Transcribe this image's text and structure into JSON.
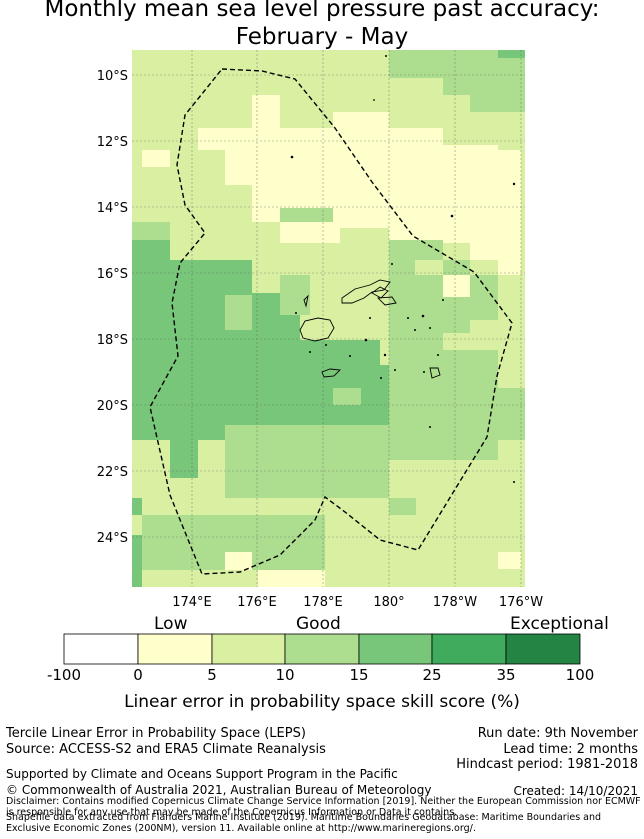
{
  "title": {
    "line1": "Monthly mean sea level pressure past accuracy:",
    "line2": "February - May"
  },
  "map": {
    "lat_labels": [
      "10°S",
      "12°S",
      "14°S",
      "16°S",
      "18°S",
      "20°S",
      "22°S",
      "24°S"
    ],
    "lon_labels": [
      "174°E",
      "176°E",
      "178°E",
      "180°",
      "178°W",
      "176°W"
    ]
  },
  "colorbar": {
    "categories": [
      "Low",
      "Good",
      "Exceptional"
    ],
    "ticks": [
      "-100",
      "0",
      "5",
      "10",
      "15",
      "25",
      "35",
      "100"
    ],
    "colors": [
      "#ffffff",
      "#ffffcc",
      "#d9f0a3",
      "#addd8e",
      "#78c679",
      "#41ab5d",
      "#238443"
    ],
    "axis_label": "Linear error in probability space skill score (%)"
  },
  "footer": {
    "method": "Tercile Linear Error in Probability Space (LEPS)",
    "source": "Source: ACCESS-S2 and ERA5 Climate Reanalysis",
    "run_date": "Run date: 9th November",
    "lead_time": "Lead time: 2 months",
    "hindcast": "Hindcast period: 1981-2018",
    "support": "Supported by Climate and Oceans Support Program in the Pacific",
    "copyright": "© Commonwealth of Australia 2021, Australian Bureau of Meteorology",
    "created": "Created: 14/10/2021",
    "disclaimer1": "Disclaimer: Contains modified Copernicus Climate Change Service Information [2019]. Neither the European Commission nor ECMWF is responsible for any use that may be made of the Copernicus Information or Data it contains.",
    "disclaimer2": "Shapefile data extracted from Flanders Marine Institute (2019). Maritime Boundaries Geodatabase: Maritime Boundaries and Exclusive Economic Zones (200NM), version 11. Available online at http://www.marineregions.org/."
  }
}
